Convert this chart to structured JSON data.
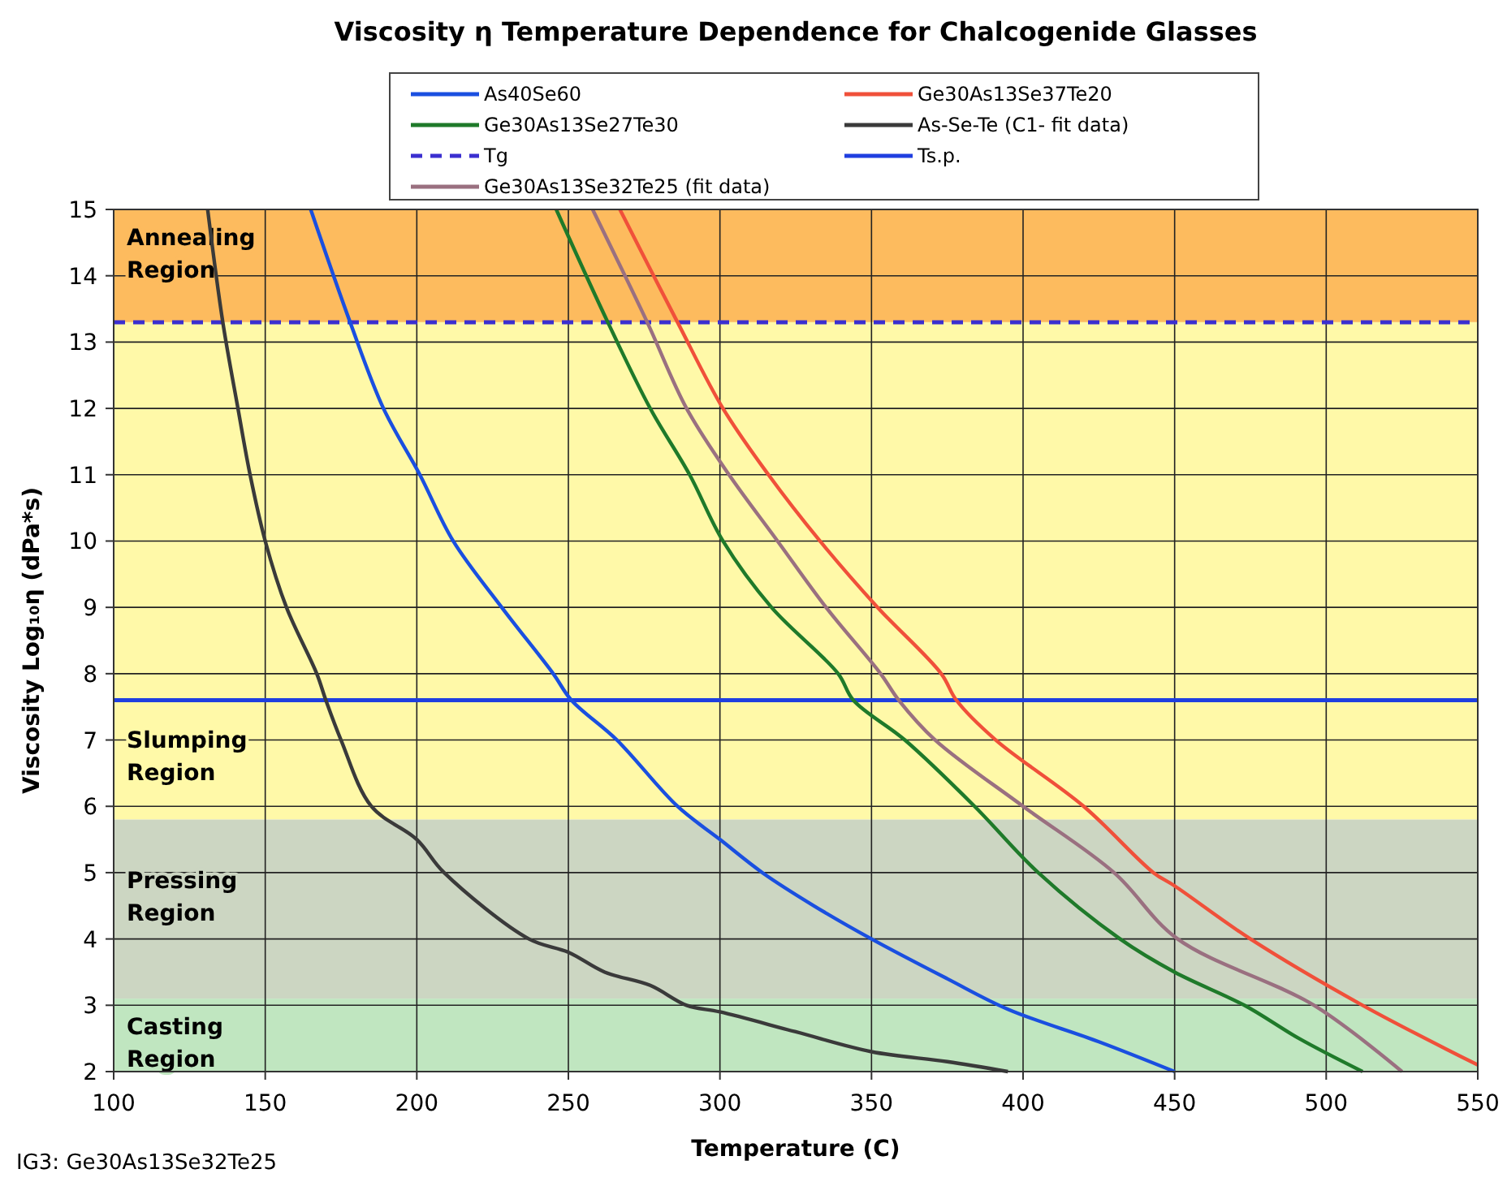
{
  "chart_data": {
    "type": "line",
    "title": "Viscosity η Temperature Dependence for Chalcogenide Glasses",
    "xlabel": "Temperature (C)",
    "ylabel": "Viscosity Log₁₀η (dPa*s)",
    "xlim": [
      100,
      550
    ],
    "xticks": [
      100,
      150,
      200,
      250,
      300,
      350,
      400,
      450,
      500,
      550
    ],
    "ylim": [
      2,
      15
    ],
    "yticks": [
      2,
      3,
      4,
      5,
      6,
      7,
      8,
      9,
      10,
      11,
      12,
      13,
      14,
      15
    ],
    "grid": true,
    "legend": "top",
    "marker": "none",
    "line_style": "solid",
    "series": [
      {
        "name": "As40Se60",
        "color": "#1a4fe0",
        "x": [
          165,
          178,
          189,
          201,
          212,
          228,
          245,
          251,
          266,
          286,
          300,
          314,
          331,
          350,
          375,
          395,
          425,
          450
        ],
        "values": [
          15,
          13.3,
          12,
          11,
          10,
          9,
          8,
          7.6,
          7,
          6,
          5.5,
          5,
          4.5,
          4,
          3.4,
          2.94,
          2.45,
          2
        ]
      },
      {
        "name": "Ge30As13Se37Te20",
        "color": "#f0503a",
        "x": [
          267,
          286,
          301,
          316,
          333,
          352,
          373,
          378,
          391,
          420,
          443,
          450,
          475,
          512,
          550
        ],
        "values": [
          15,
          13.3,
          12,
          11,
          10,
          9,
          8,
          7.6,
          7,
          6,
          5,
          4.8,
          4,
          3,
          2.1
        ]
      },
      {
        "name": "Ge30As13Se27Te30",
        "color": "#1f7a2a",
        "x": [
          246,
          263,
          277,
          290,
          301,
          317,
          339,
          344,
          361,
          384,
          405,
          432,
          450,
          473,
          491,
          512
        ],
        "values": [
          15,
          13.3,
          12,
          11,
          10,
          9,
          8,
          7.6,
          7,
          6,
          5,
          4,
          3.5,
          3,
          2.5,
          2
        ]
      },
      {
        "name": "As-Se-Te (C1- fit data)",
        "color": "#3a3a3a",
        "x": [
          131,
          136,
          141,
          145,
          150,
          157,
          167,
          170,
          175,
          185,
          200,
          209,
          237,
          250,
          262,
          277,
          289,
          300,
          325,
          350,
          375,
          395
        ],
        "values": [
          15,
          13.3,
          12,
          11,
          10,
          9,
          8,
          7.6,
          7,
          6,
          5.5,
          5,
          4,
          3.8,
          3.5,
          3.3,
          3,
          2.9,
          2.6,
          2.3,
          2.15,
          2
        ]
      },
      {
        "name": "Ge30As13Se32Te25 (fit data)",
        "color": "#9a7080",
        "x": [
          258,
          276,
          289,
          303,
          319,
          335,
          353,
          359,
          371,
          400,
          430,
          451,
          496,
          525
        ],
        "values": [
          15,
          13.3,
          12,
          11,
          10,
          9,
          8,
          7.6,
          7,
          6,
          5,
          4,
          3,
          2
        ]
      }
    ],
    "ref_lines": [
      {
        "axis": "y",
        "value": 13.3,
        "label": "Tg",
        "color": "#3b2fd0",
        "line_style": "dashed"
      },
      {
        "axis": "y",
        "value": 7.6,
        "label": "Ts.p.",
        "color": "#1f3fe0",
        "line_style": "solid"
      }
    ],
    "bands": [
      {
        "axis": "y",
        "from": 13.3,
        "to": 15,
        "label": "Annealing Region",
        "color": "#fdbb5e"
      },
      {
        "axis": "y",
        "from": 5.8,
        "to": 13.3,
        "label": "Slumping Region",
        "color": "#fff9a8"
      },
      {
        "axis": "y",
        "from": 3.1,
        "to": 5.8,
        "label": "Pressing Region",
        "color": "#ccd6c2"
      },
      {
        "axis": "y",
        "from": 2,
        "to": 3.1,
        "label": "Casting Region",
        "color": "#c0e6c0"
      }
    ],
    "annotations": [
      "IG3: Ge30As13Se32Te25"
    ]
  }
}
